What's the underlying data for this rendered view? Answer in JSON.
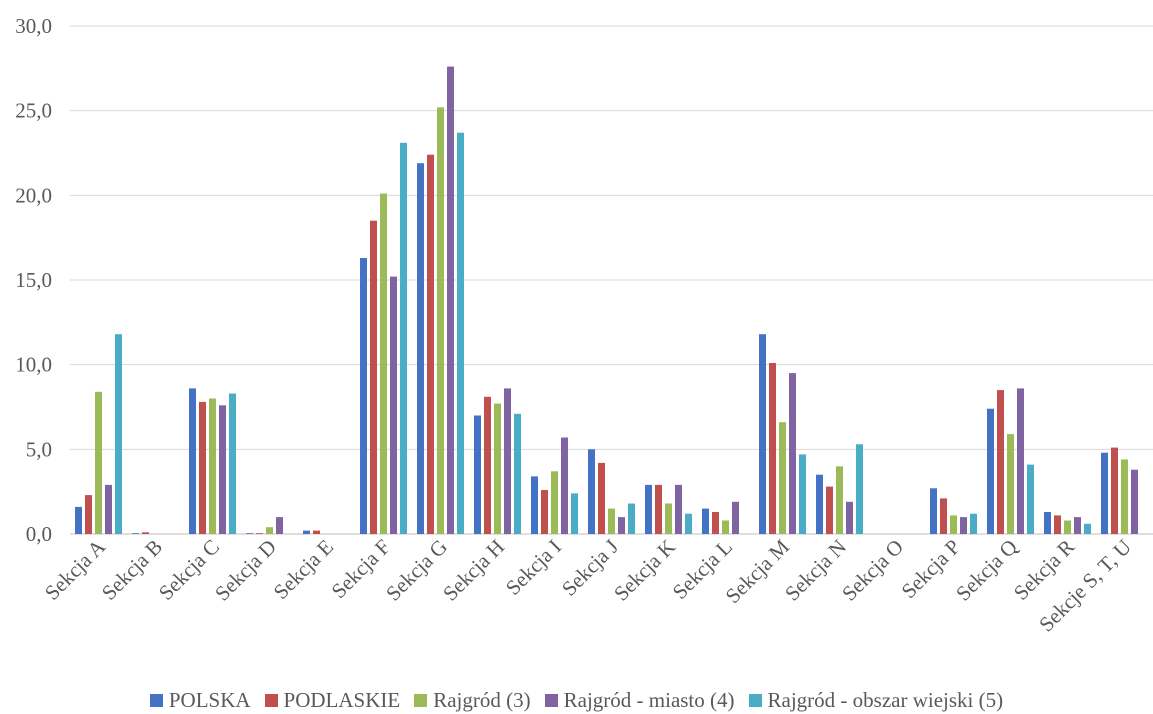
{
  "chart_data": {
    "type": "bar",
    "title": "",
    "xlabel": "",
    "ylabel": "",
    "ylim": [
      0,
      30
    ],
    "yticks": [
      "0,0",
      "5,0",
      "10,0",
      "15,0",
      "20,0",
      "25,0",
      "30,0"
    ],
    "grid": true,
    "legend_position": "bottom",
    "categories": [
      "Sekcja A",
      "Sekcja B",
      "Sekcja C",
      "Sekcja D",
      "Sekcja E",
      "Sekcja F",
      "Sekcja G",
      "Sekcja H",
      "Sekcja I",
      "Sekcja J",
      "Sekcja K",
      "Sekcja L",
      "Sekcja M",
      "Sekcja N",
      "Sekcja O",
      "Sekcja P",
      "Sekcja Q",
      "Sekcja R",
      "Sekcje S, T, U"
    ],
    "series": [
      {
        "name": "POLSKA",
        "color": "#4472C4",
        "values": [
          1.6,
          0.05,
          8.6,
          0.05,
          0.2,
          16.3,
          21.9,
          7.0,
          3.4,
          5.0,
          2.9,
          1.5,
          11.8,
          3.5,
          0.0,
          2.7,
          7.4,
          1.3,
          4.8
        ]
      },
      {
        "name": "PODLASKIE",
        "color": "#C0504D",
        "values": [
          2.3,
          0.1,
          7.8,
          0.05,
          0.2,
          18.5,
          22.4,
          8.1,
          2.6,
          4.2,
          2.9,
          1.3,
          10.1,
          2.8,
          0.0,
          2.1,
          8.5,
          1.1,
          5.1
        ]
      },
      {
        "name": "Rajgród (3)",
        "color": "#9BBB59",
        "values": [
          8.4,
          0.0,
          8.0,
          0.4,
          0.0,
          20.1,
          25.2,
          7.7,
          3.7,
          1.5,
          1.8,
          0.8,
          6.6,
          4.0,
          0.0,
          1.1,
          5.9,
          0.8,
          4.4
        ]
      },
      {
        "name": "Rajgród - miasto (4)",
        "color": "#8064A2",
        "values": [
          2.9,
          0.0,
          7.6,
          1.0,
          0.0,
          15.2,
          27.6,
          8.6,
          5.7,
          1.0,
          2.9,
          1.9,
          9.5,
          1.9,
          0.0,
          1.0,
          8.6,
          1.0,
          3.8
        ]
      },
      {
        "name": "Rajgród - obszar wiejski (5)",
        "color": "#4BACC6",
        "values": [
          11.8,
          0.0,
          8.3,
          0.0,
          0.0,
          23.1,
          23.7,
          7.1,
          2.4,
          1.8,
          1.2,
          0.0,
          4.7,
          5.3,
          0.0,
          1.2,
          4.1,
          0.6,
          0.0
        ]
      }
    ]
  }
}
